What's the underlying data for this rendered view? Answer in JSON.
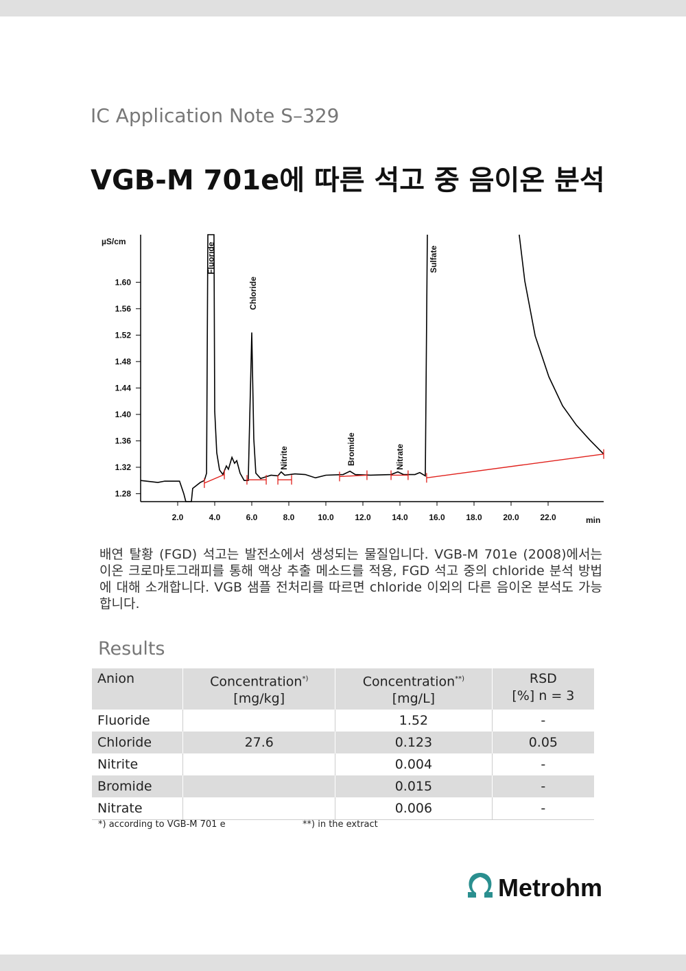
{
  "header": {
    "series": "IC Application Note S–329",
    "title": "VGB-M 701e에 따른 석고 중 음이온 분석"
  },
  "chart_data": {
    "type": "line",
    "ylabel": "µS/cm",
    "xlabel": "min",
    "xlim": [
      0,
      25
    ],
    "ylim": [
      1.268,
      1.672
    ],
    "xticks": [
      {
        "value": 2,
        "label": "2.0"
      },
      {
        "value": 4,
        "label": "4.0"
      },
      {
        "value": 6,
        "label": "6.0"
      },
      {
        "value": 8,
        "label": "8.0"
      },
      {
        "value": 10,
        "label": "10.0"
      },
      {
        "value": 12,
        "label": "12.0"
      },
      {
        "value": 14,
        "label": "14.0"
      },
      {
        "value": 16,
        "label": "16.0"
      },
      {
        "value": 18,
        "label": "18.0"
      },
      {
        "value": 20,
        "label": "20.0"
      },
      {
        "value": 22,
        "label": "22.0"
      }
    ],
    "yticks": [
      1.28,
      1.32,
      1.36,
      {
        "value": 1.4,
        "label": "1.40"
      },
      1.44,
      1.48,
      1.52,
      1.56,
      {
        "value": 1.6,
        "label": "1.60"
      }
    ],
    "series": [
      {
        "color": "#000000",
        "x": [
          0,
          0.93,
          1.3,
          2.1,
          2.33,
          2.44,
          2.74,
          2.81,
          3.22,
          3.44,
          3.56,
          3.63,
          3.78,
          3.96,
          4.0,
          4.11,
          4.26,
          4.44,
          4.63,
          4.74,
          4.93,
          5.07,
          5.19,
          5.37,
          5.59,
          5.81,
          6.0,
          6.11,
          6.22,
          6.48,
          7.04,
          7.41,
          7.59,
          7.78,
          8.33,
          8.89,
          9.44,
          10.0,
          10.93,
          11.3,
          11.59,
          12.41,
          13.52,
          13.89,
          14.19,
          14.81,
          15.07,
          15.37,
          15.48,
          null,
          20.44,
          20.74,
          21.3,
          22.04,
          22.78,
          23.52,
          24.26,
          25
        ],
        "values": [
          1.3,
          1.297,
          1.299,
          1.299,
          1.28,
          1.268,
          1.268,
          1.288,
          1.297,
          1.3,
          1.311,
          1.672,
          1.672,
          1.672,
          1.405,
          1.342,
          1.316,
          1.309,
          1.322,
          1.317,
          1.335,
          1.326,
          1.33,
          1.311,
          1.3,
          1.3,
          1.524,
          1.363,
          1.311,
          1.303,
          1.308,
          1.307,
          1.313,
          1.308,
          1.31,
          1.309,
          1.304,
          1.308,
          1.309,
          1.314,
          1.309,
          1.308,
          1.309,
          1.313,
          1.309,
          1.309,
          1.312,
          1.307,
          1.672,
          null,
          1.672,
          1.602,
          1.519,
          1.457,
          1.413,
          1.384,
          1.361,
          1.34
        ]
      },
      {
        "color": "#e0201b",
        "x": [
          3.44,
          4.52,
          null,
          5.74,
          6.78,
          null,
          7.41,
          8.15,
          null,
          10.74,
          12.22,
          null,
          13.52,
          14.44,
          null,
          15.44,
          25
        ],
        "values": [
          1.296,
          1.309,
          null,
          1.301,
          1.301,
          null,
          1.301,
          1.301,
          null,
          1.306,
          1.308,
          null,
          1.308,
          1.308,
          null,
          1.304,
          1.34
        ]
      }
    ],
    "annotations": [
      {
        "label": "Fluoride",
        "x": 3.8,
        "y": 1.612
      },
      {
        "label": "Chloride",
        "x": 6.07,
        "y": 1.558
      },
      {
        "label": "Nitrite",
        "x": 7.74,
        "y": 1.316
      },
      {
        "label": "Bromide",
        "x": 11.37,
        "y": 1.322
      },
      {
        "label": "Nitrate",
        "x": 14.0,
        "y": 1.316
      },
      {
        "label": "Sulfate",
        "x": 15.81,
        "y": 1.614
      }
    ]
  },
  "body": "배연 탈황 (FGD) 석고는 발전소에서 생성되는 물질입니다. VGB-M 701e (2008)에서는 이온 크로마토그래피를 통해 액상 추출 메소드를 적용, FGD 석고 중의 chloride 분석 방법에 대해 소개합니다. VGB 샘플 전처리를 따르면 chloride 이외의 다른 음이온 분석도 가능합니다.",
  "results": {
    "heading": "Results",
    "table": {
      "header": [
        {
          "text": "Anion"
        },
        {
          "text": "Concentration",
          "sup": "*)",
          "unit": "[mg/kg]"
        },
        {
          "text": "Concentration",
          "sup": "**)",
          "unit": "[mg/L]"
        },
        {
          "text": "RSD",
          "unit": "[%] n = 3"
        }
      ],
      "rows": [
        [
          "Fluoride",
          "",
          "1.52",
          "-"
        ],
        [
          "Chloride",
          "27.6",
          "0.123",
          "0.05"
        ],
        [
          "Nitrite",
          "",
          "0.004",
          "-"
        ],
        [
          "Bromide",
          "",
          "0.015",
          "-"
        ],
        [
          "Nitrate",
          "",
          "0.006",
          "-"
        ]
      ]
    },
    "footnotes": [
      "*) according to VGB-M 701 e",
      "**) in the extract"
    ]
  },
  "logo": "Metrohm"
}
